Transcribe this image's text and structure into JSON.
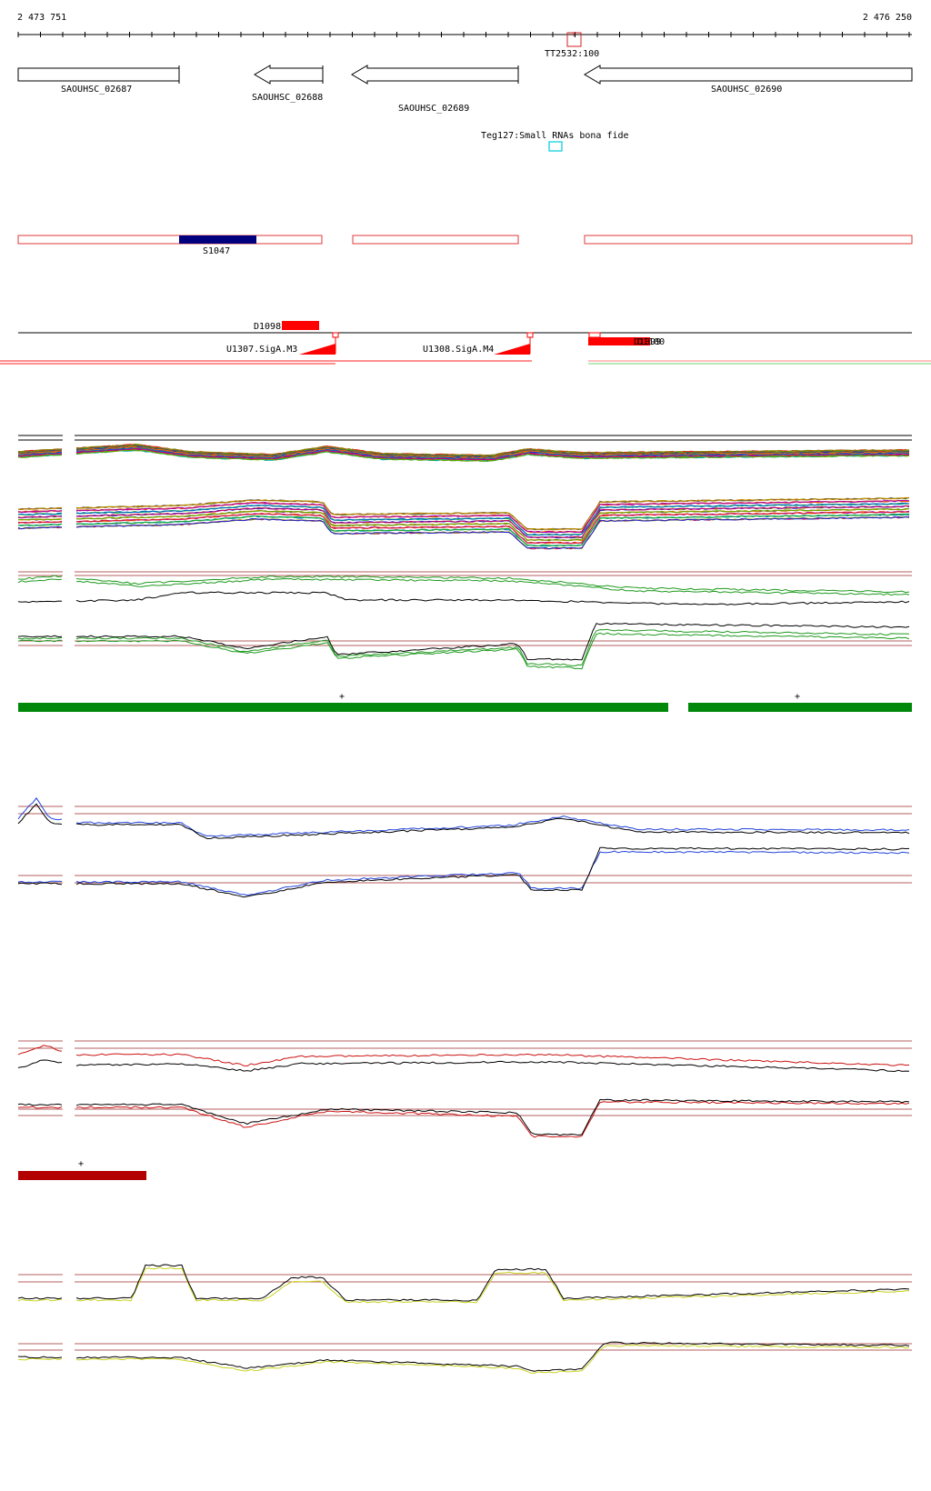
{
  "coordinates": {
    "start": "2 473 751",
    "end": "2 476 250"
  },
  "terminator": "TT2532:100",
  "genes": [
    {
      "name": "SAOUHSC_02687",
      "strand": "+"
    },
    {
      "name": "SAOUHSC_02688",
      "strand": "-"
    },
    {
      "name": "SAOUHSC_02689",
      "strand": "-"
    },
    {
      "name": "SAOUHSC_02690",
      "strand": "-"
    }
  ],
  "small_rna": "Teg127:Small RNAs bona fide",
  "segment_label": "S1047",
  "downshift_label": "D1098",
  "upshift_labels": [
    "U1307.SigA.M3",
    "U1308.SigA.M4"
  ],
  "overlap_labels": [
    "D1100",
    "D1099"
  ],
  "strand_markers": [
    "+",
    "+",
    "+"
  ],
  "colors": {
    "segment_box": "#e03a3a",
    "segment_fill": "#00007f",
    "shift": "#ff0000",
    "cyan_box": "#00ccdd",
    "green_bar": "#00880a",
    "dark_red_bar": "#b30000",
    "blue_series": "#2244dd",
    "green_series": "#1f9a1f",
    "red_series": "#cc1111",
    "yellow_series": "#c8d21e",
    "guide_line": "#9b2a2a"
  }
}
